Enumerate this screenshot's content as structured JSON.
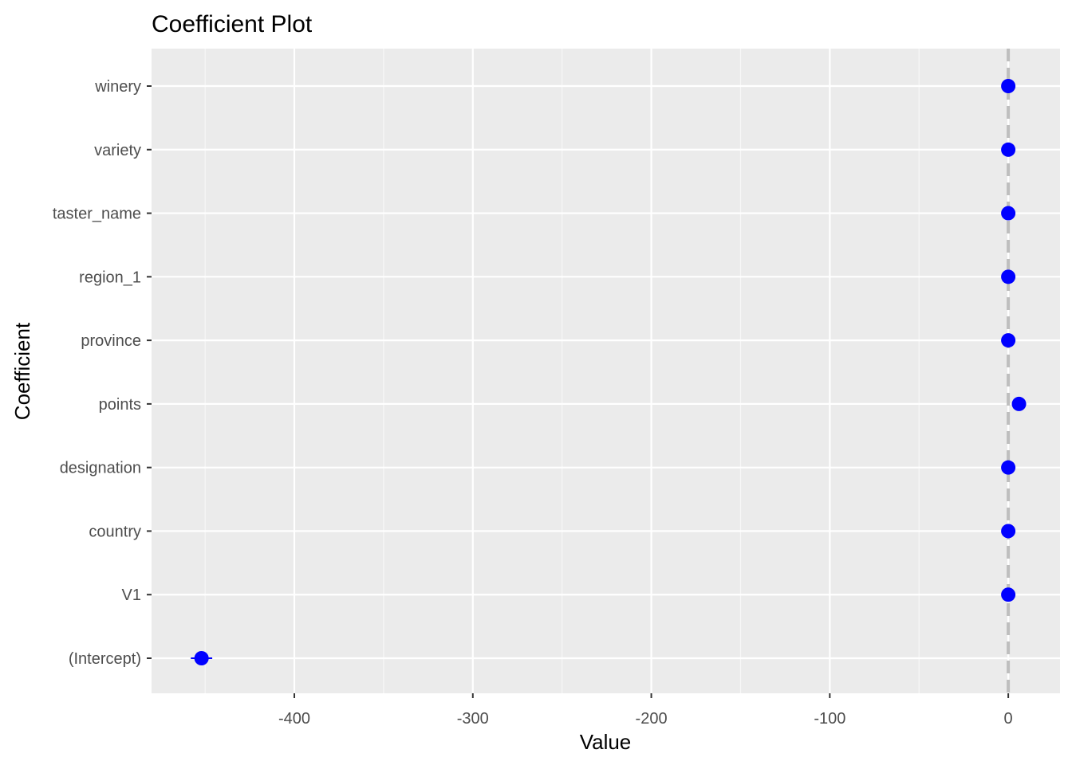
{
  "chart_data": {
    "type": "scatter",
    "title": "Coefficient Plot",
    "xlabel": "Value",
    "ylabel": "Coefficient",
    "xlim": [
      -480,
      29
    ],
    "x_ticks": [
      -400,
      -300,
      -200,
      -100,
      0
    ],
    "x_tick_labels": [
      "-400",
      "-300",
      "-200",
      "-100",
      "0"
    ],
    "categories": [
      "winery",
      "variety",
      "taster_name",
      "region_1",
      "province",
      "points",
      "designation",
      "country",
      "V1",
      "(Intercept)"
    ],
    "values": [
      0,
      0,
      0,
      0,
      0,
      6,
      0,
      0,
      0,
      -452
    ],
    "ci_low": [
      0,
      0,
      0,
      0,
      0,
      5,
      0,
      0,
      0,
      -458
    ],
    "ci_high": [
      0,
      0,
      0,
      0,
      0,
      7,
      0,
      0,
      0,
      -446
    ],
    "reference_line": 0,
    "grid": true,
    "colors": {
      "panel": "#ebebeb",
      "grid_major": "#ffffff",
      "grid_minor": "#f7f7f7",
      "point": "#0000ff",
      "reference_line": "#bebebe"
    }
  }
}
